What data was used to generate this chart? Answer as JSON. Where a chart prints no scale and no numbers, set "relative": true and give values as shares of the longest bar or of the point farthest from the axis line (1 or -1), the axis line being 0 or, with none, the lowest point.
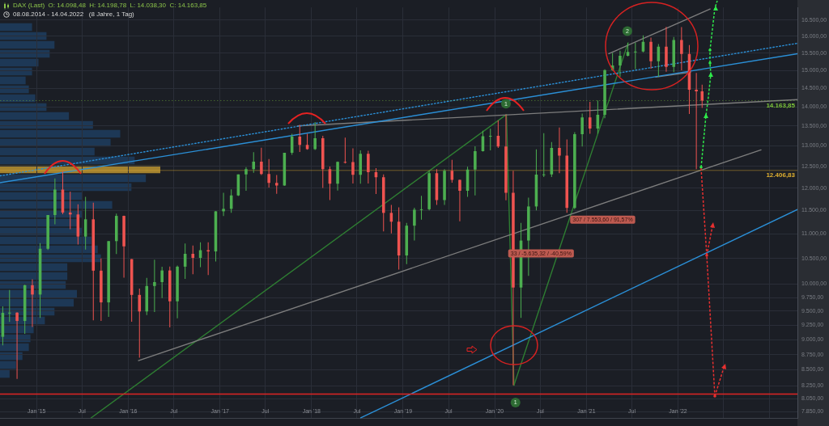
{
  "chart_data": [
    {
      "type": "candlestick",
      "title": "DAX (Last)  O: 14.098,48  H: 14.198,78  L: 14.038,30  C: 14.163,85",
      "subtitle": "08.08.2014 - 14.04.2022   (8 Jahre, 1 Tag)",
      "x": [
        "2014-08-19",
        "2014-09-15",
        "2014-10-15",
        "2014-11-15",
        "2014-12-15",
        "2015-01-15",
        "2015-02-15",
        "2015-03-15",
        "2015-04-15",
        "2015-05-15",
        "2015-06-15",
        "2015-07-15",
        "2015-08-15",
        "2015-09-15",
        "2015-10-15",
        "2015-11-15",
        "2015-12-15",
        "2016-01-15",
        "2016-02-15",
        "2016-03-15",
        "2016-04-15",
        "2016-05-15",
        "2016-06-15",
        "2016-07-15",
        "2016-08-15",
        "2016-09-15",
        "2016-10-15",
        "2016-11-15",
        "2016-12-15",
        "2017-01-15",
        "2017-02-15",
        "2017-03-15",
        "2017-04-15",
        "2017-05-15",
        "2017-06-15",
        "2017-07-15",
        "2017-08-15",
        "2017-09-15",
        "2017-10-15",
        "2017-11-15",
        "2017-12-15",
        "2018-01-15",
        "2018-02-15",
        "2018-03-15",
        "2018-04-15",
        "2018-05-15",
        "2018-06-15",
        "2018-07-15",
        "2018-08-15",
        "2018-09-15",
        "2018-10-15",
        "2018-11-15",
        "2018-12-15",
        "2019-01-15",
        "2019-02-15",
        "2019-03-15",
        "2019-04-15",
        "2019-05-15",
        "2019-06-15",
        "2019-07-15",
        "2019-08-15",
        "2019-09-15",
        "2019-10-15",
        "2019-11-15",
        "2019-12-15",
        "2020-01-15",
        "2020-02-15",
        "2020-03-15",
        "2020-04-15",
        "2020-05-15",
        "2020-06-15",
        "2020-07-15",
        "2020-08-15",
        "2020-09-15",
        "2020-10-15",
        "2020-11-15",
        "2020-12-15",
        "2021-01-15",
        "2021-02-15",
        "2021-03-15",
        "2021-04-15",
        "2021-05-15",
        "2021-06-15",
        "2021-07-15",
        "2021-08-15",
        "2021-09-15",
        "2021-10-15",
        "2021-11-15",
        "2021-12-15",
        "2022-01-15",
        "2022-02-15",
        "2022-03-15",
        "2022-04-07"
      ],
      "ohlc": [
        [
          9050,
          9588,
          8903,
          9470
        ],
        [
          9470,
          9891,
          9310,
          9474
        ],
        [
          9474,
          9480,
          8355,
          9326
        ],
        [
          9326,
          9989,
          9100,
          9980
        ],
        [
          9980,
          10093,
          9219,
          9805
        ],
        [
          9805,
          10810,
          9382,
          10694
        ],
        [
          10694,
          11401,
          10668,
          11401
        ],
        [
          11401,
          12219,
          11200,
          11966
        ],
        [
          11966,
          12390,
          11420,
          11454
        ],
        [
          11454,
          11920,
          11100,
          11413
        ],
        [
          11413,
          11636,
          10780,
          10944
        ],
        [
          10944,
          11802,
          10676,
          11308
        ],
        [
          11308,
          11670,
          9338,
          10259
        ],
        [
          10259,
          10500,
          9325,
          9660
        ],
        [
          9660,
          10850,
          9400,
          10850
        ],
        [
          10850,
          11430,
          10589,
          11382
        ],
        [
          11382,
          11386,
          10124,
          10743
        ],
        [
          10486,
          10486,
          9314,
          9798
        ],
        [
          9798,
          9915,
          8699,
          9495
        ],
        [
          9495,
          10118,
          9430,
          9965
        ],
        [
          9965,
          10474,
          9484,
          10039
        ],
        [
          10039,
          10335,
          9738,
          10263
        ],
        [
          10263,
          10340,
          9214,
          9680
        ],
        [
          9680,
          10360,
          9373,
          10337
        ],
        [
          10337,
          10803,
          10100,
          10592
        ],
        [
          10592,
          10760,
          10190,
          10511
        ],
        [
          10511,
          10827,
          10326,
          10665
        ],
        [
          10665,
          10827,
          10174,
          10640
        ],
        [
          10640,
          11482,
          10440,
          11481
        ],
        [
          11481,
          11893,
          11380,
          11535
        ],
        [
          11535,
          11967,
          11450,
          11834
        ],
        [
          11834,
          12313,
          11820,
          12313
        ],
        [
          12313,
          12486,
          11937,
          12438
        ],
        [
          12438,
          12842,
          12350,
          12615
        ],
        [
          12615,
          12952,
          12300,
          12325
        ],
        [
          12325,
          12676,
          12010,
          12118
        ],
        [
          12118,
          12300,
          11868,
          12056
        ],
        [
          12056,
          12829,
          12050,
          12829
        ],
        [
          12829,
          13300,
          12780,
          13230
        ],
        [
          13230,
          13526,
          12848,
          13024
        ],
        [
          13024,
          13300,
          12903,
          12918
        ],
        [
          12918,
          13597,
          12900,
          13189
        ],
        [
          13189,
          13250,
          12003,
          12436
        ],
        [
          12436,
          12500,
          11727,
          12097
        ],
        [
          12097,
          12620,
          11940,
          12612
        ],
        [
          12612,
          13205,
          12570,
          12605
        ],
        [
          12605,
          12940,
          12104,
          12306
        ],
        [
          12306,
          12888,
          12100,
          12806
        ],
        [
          12806,
          12880,
          12103,
          12364
        ],
        [
          12364,
          12460,
          11865,
          12247
        ],
        [
          12247,
          12315,
          11051,
          11447
        ],
        [
          11447,
          11620,
          11009,
          11257
        ],
        [
          11257,
          11566,
          10279,
          10559
        ],
        [
          10559,
          11232,
          10386,
          11173
        ],
        [
          11173,
          11557,
          10863,
          11516
        ],
        [
          11516,
          11823,
          11299,
          11526
        ],
        [
          11526,
          12396,
          11500,
          12344
        ],
        [
          12344,
          12435,
          11620,
          11727
        ],
        [
          11727,
          12438,
          11620,
          12399
        ],
        [
          12399,
          12656,
          12120,
          12189
        ],
        [
          12189,
          12190,
          11266,
          11939
        ],
        [
          11939,
          12494,
          11800,
          12428
        ],
        [
          12428,
          12986,
          11831,
          12867
        ],
        [
          12867,
          13374,
          12860,
          13236
        ],
        [
          13236,
          13425,
          12887,
          13249
        ],
        [
          13249,
          13640,
          12948,
          12982
        ],
        [
          12982,
          13795,
          11724,
          11890
        ],
        [
          11890,
          12400,
          8256,
          9936
        ],
        [
          9936,
          11230,
          9380,
          10862
        ],
        [
          10862,
          11781,
          10160,
          11587
        ],
        [
          11587,
          12913,
          11500,
          12311
        ],
        [
          12311,
          13314,
          12250,
          12313
        ],
        [
          12313,
          13090,
          12253,
          12945
        ],
        [
          12945,
          13460,
          12340,
          12761
        ],
        [
          12761,
          13156,
          11450,
          11556
        ],
        [
          11556,
          13340,
          11530,
          13291
        ],
        [
          13291,
          13820,
          12980,
          13719
        ],
        [
          13719,
          14131,
          13300,
          13433
        ],
        [
          13433,
          14170,
          13300,
          13786
        ],
        [
          13786,
          15030,
          13700,
          15008
        ],
        [
          15008,
          15502,
          14990,
          15136
        ],
        [
          15136,
          15568,
          14816,
          15421
        ],
        [
          15421,
          15803,
          15400,
          15531
        ],
        [
          15531,
          15811,
          15035,
          15544
        ],
        [
          15544,
          16030,
          15520,
          15835
        ],
        [
          15835,
          15960,
          15047,
          15261
        ],
        [
          15261,
          15765,
          14819,
          15689
        ],
        [
          15689,
          16290,
          14960,
          15100
        ],
        [
          15100,
          15980,
          14950,
          15885
        ],
        [
          15885,
          16285,
          15000,
          15471
        ],
        [
          15471,
          15736,
          13808,
          14461
        ],
        [
          14461,
          14925,
          12439,
          14415
        ],
        [
          14415,
          14600,
          13970,
          14163.85
        ]
      ],
      "colors": [
        "#4caf50",
        "#4caf50",
        "#ef5350",
        "#4caf50",
        "#ef5350",
        "#4caf50",
        "#4caf50",
        "#4caf50",
        "#ef5350",
        "#ef5350",
        "#ef5350",
        "#4caf50",
        "#ef5350",
        "#ef5350",
        "#4caf50",
        "#4caf50",
        "#ef5350",
        "#ef5350",
        "#ef5350",
        "#4caf50",
        "#4caf50",
        "#4caf50",
        "#ef5350",
        "#4caf50",
        "#4caf50",
        "#ef5350",
        "#4caf50",
        "#ef5350",
        "#4caf50",
        "#4caf50",
        "#4caf50",
        "#4caf50",
        "#4caf50",
        "#4caf50",
        "#ef5350",
        "#ef5350",
        "#ef5350",
        "#4caf50",
        "#4caf50",
        "#ef5350",
        "#ef5350",
        "#4caf50",
        "#ef5350",
        "#ef5350",
        "#4caf50",
        "#ef5350",
        "#ef5350",
        "#4caf50",
        "#ef5350",
        "#ef5350",
        "#ef5350",
        "#ef5350",
        "#ef5350",
        "#4caf50",
        "#4caf50",
        "#4caf50",
        "#4caf50",
        "#ef5350",
        "#4caf50",
        "#ef5350",
        "#ef5350",
        "#4caf50",
        "#4caf50",
        "#4caf50",
        "#4caf50",
        "#ef5350",
        "#ef5350",
        "#ef5350",
        "#4caf50",
        "#4caf50",
        "#4caf50",
        "#4caf50",
        "#4caf50",
        "#ef5350",
        "#ef5350",
        "#4caf50",
        "#4caf50",
        "#ef5350",
        "#4caf50",
        "#4caf50",
        "#4caf50",
        "#4caf50",
        "#4caf50",
        "#4caf50",
        "#4caf50",
        "#ef5350",
        "#4caf50",
        "#ef5350",
        "#4caf50",
        "#ef5350",
        "#ef5350",
        "#ef5350",
        "#ef5350"
      ],
      "series": [
        {
          "type": "line",
          "x": [
            "2014-08-08",
            "2023-04-22"
          ],
          "values": [
            12120,
            15480
          ],
          "color": "#2b8fd6"
        },
        {
          "type": "line",
          "x": [
            "2014-08-08",
            "2023-04-22"
          ],
          "values": [
            12280,
            15790
          ],
          "color": "#2b8fd6",
          "line_style": "dotted"
        },
        {
          "type": "line",
          "x": [
            "2018-07-16",
            "2023-04-22"
          ],
          "values": [
            7760,
            11520
          ],
          "color": "#2b8fd6"
        },
        {
          "type": "line",
          "x": [
            "2017-11-07",
            "2023-04-22"
          ],
          "values": [
            13500,
            14190
          ],
          "color": "#7d7d7d"
        },
        {
          "type": "line",
          "x": [
            "2016-02-11",
            "2022-11-28"
          ],
          "values": [
            8650,
            12900
          ],
          "color": "#7d7d7d"
        },
        {
          "type": "line",
          "x": [
            "2021-03-31",
            "2022-05-09"
          ],
          "values": [
            15480,
            16850
          ],
          "color": "#7d7d7d"
        },
        {
          "type": "line",
          "x": [
            "2021-10-04",
            "2022-02-20"
          ],
          "values": [
            14810,
            14950
          ],
          "color": "#7d7d7d"
        },
        {
          "type": "line",
          "x": [
            "2015-08-06",
            "2020-02-17"
          ],
          "values": [
            7760,
            13795
          ],
          "color": "#2e7d32"
        },
        {
          "type": "line",
          "x": [
            "2020-02-17",
            "2020-03-18"
          ],
          "values": [
            13795,
            8256
          ],
          "color": "#2e7d32"
        },
        {
          "type": "line",
          "x": [
            "2020-03-18",
            "2021-06-16"
          ],
          "values": [
            8256,
            15803
          ],
          "color": "#2e7d32"
        }
      ],
      "xlim": [
        "2014-08-08",
        "2023-04-22"
      ],
      "xticks": [
        {
          "value": "2015-01-01",
          "label": "Jan '15"
        },
        {
          "value": "2015-07-01",
          "label": "Jul"
        },
        {
          "value": "2016-01-01",
          "label": "Jan '16"
        },
        {
          "value": "2016-07-01",
          "label": "Jul"
        },
        {
          "value": "2017-01-01",
          "label": "Jan '17"
        },
        {
          "value": "2017-07-01",
          "label": "Jul"
        },
        {
          "value": "2018-01-01",
          "label": "Jan '18"
        },
        {
          "value": "2018-07-01",
          "label": "Jul"
        },
        {
          "value": "2019-01-01",
          "label": "Jan '19"
        },
        {
          "value": "2019-07-01",
          "label": "Jul"
        },
        {
          "value": "2020-01-01",
          "label": "Jan '20"
        },
        {
          "value": "2020-07-01",
          "label": "Jul"
        },
        {
          "value": "2021-01-01",
          "label": "Jan '21"
        },
        {
          "value": "2021-07-01",
          "label": "Jul"
        },
        {
          "value": "2022-01-01",
          "label": "Jan '22"
        },
        {
          "value": "2022-07-01",
          "label": null
        },
        {
          "value": "2023-01-01",
          "label": null
        }
      ],
      "ylim": [
        7750,
        16900
      ],
      "yticks": [
        {
          "value": 16500,
          "label": "16.500,00"
        },
        {
          "value": 16000,
          "label": "16.000,00"
        },
        {
          "value": 15500,
          "label": "15.500,00"
        },
        {
          "value": 15000,
          "label": "15.000,00"
        },
        {
          "value": 14500,
          "label": "14.500,00"
        },
        {
          "value": 14000,
          "label": "14.000,00"
        },
        {
          "value": 13500,
          "label": "13.500,00"
        },
        {
          "value": 13000,
          "label": "13.000,00"
        },
        {
          "value": 12500,
          "label": "12.500,00"
        },
        {
          "value": 12000,
          "label": "12.000,00"
        },
        {
          "value": 11500,
          "label": "11.500,00"
        },
        {
          "value": 11000,
          "label": "11.000,00"
        },
        {
          "value": 10500,
          "label": "10.500,00"
        },
        {
          "value": 10000,
          "label": "10.000,00"
        },
        {
          "value": 9750,
          "label": "9.750,00"
        },
        {
          "value": 9500,
          "label": "9.500,00"
        },
        {
          "value": 9250,
          "label": "9.250,00"
        },
        {
          "value": 9000,
          "label": "9.000,00"
        },
        {
          "value": 8750,
          "label": "8.750,00"
        },
        {
          "value": 8500,
          "label": "8.500,00"
        },
        {
          "value": 8250,
          "label": "8.250,00"
        },
        {
          "value": 8050,
          "label": "8.050,00"
        },
        {
          "value": 7850,
          "label": "7.850,00"
        }
      ],
      "log": "y",
      "grid": true,
      "ref_lines": [
        {
          "axis": "y",
          "value": 8120,
          "color": "#e02424"
        },
        {
          "axis": "y",
          "value": 12406.83,
          "label": "12.406,83",
          "color": "#e0b030"
        },
        {
          "axis": "y",
          "value": 14163.85,
          "label": "14.163,85",
          "color": "#7cc43a",
          "line_style": "dotted"
        }
      ],
      "annotations": [
        {
          "text": "33 / -5.635,32 / -40,59%",
          "x": "2020-02-24",
          "y": 10600
        },
        {
          "text": "307 / 7.553,60 / 91,57%",
          "x": "2020-10-28",
          "y": 11300
        },
        {
          "text": "1",
          "x": "2020-02-15",
          "y": 14080
        },
        {
          "text": "2",
          "x": "2021-06-13",
          "y": 16160
        },
        {
          "text": "1",
          "x": "2020-03-24",
          "y": 7990
        }
      ]
    },
    {
      "type": "bar",
      "orientation": "horizontal",
      "relative": true,
      "categories": [
        null,
        null,
        null,
        null,
        null,
        null,
        null,
        null,
        null,
        null,
        null,
        null,
        null,
        null,
        null,
        null,
        null,
        null,
        null,
        null,
        null,
        null,
        null,
        null,
        null,
        null,
        null,
        null,
        null,
        null,
        null,
        null,
        null,
        null,
        null,
        null,
        null,
        null,
        null,
        null
      ],
      "values": [
        0.2,
        0.29,
        0.34,
        0.31,
        0.24,
        0.2,
        0.16,
        0.18,
        0.22,
        0.29,
        0.43,
        0.58,
        0.75,
        0.69,
        0.59,
        0.84,
        1,
        0.91,
        0.82,
        0.51,
        0.7,
        0.51,
        0.48,
        0.51,
        0.57,
        0.61,
        0.63,
        0.42,
        0.42,
        0.41,
        0.48,
        0.46,
        0.34,
        0.28,
        0.21,
        0.19,
        0.18,
        0.14,
        0.1,
        0.06
      ],
      "colors": [
        "#1d3856",
        "#1d3856",
        "#1d3856",
        "#1d3856",
        "#1d3856",
        "#1d3856",
        "#1d3856",
        "#1d3856",
        "#1d3856",
        "#1d3856",
        "#1d3856",
        "#1d3856",
        "#1d3856",
        "#1d3856",
        "#1d3856",
        "#1d3856",
        "#a3822f",
        "#1d3856",
        "#1d3856",
        "#1d3856",
        "#1d3856",
        "#1d3856",
        "#1d3856",
        "#1d3856",
        "#1d3856",
        "#1d3856",
        "#1d3856",
        "#1d3856",
        "#1d3856",
        "#1d3856",
        "#1d3856",
        "#1d3856",
        "#1d3856",
        "#1d3856",
        "#1d3856",
        "#1d3856",
        "#1d3856",
        "#1d3856",
        "#1d3856",
        "#1d3856"
      ]
    }
  ]
}
